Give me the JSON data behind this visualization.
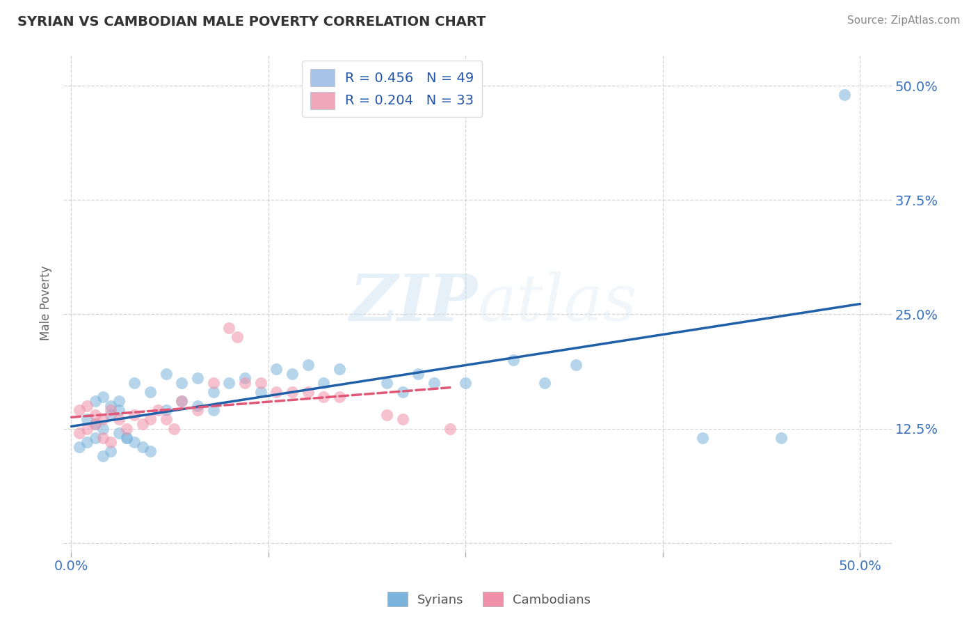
{
  "title": "SYRIAN VS CAMBODIAN MALE POVERTY CORRELATION CHART",
  "source": "Source: ZipAtlas.com",
  "ylabel": "Male Poverty",
  "xlim": [
    -0.005,
    0.52
  ],
  "ylim": [
    -0.01,
    0.535
  ],
  "x_tick_positions": [
    0.0,
    0.125,
    0.25,
    0.375,
    0.5
  ],
  "x_tick_labels": [
    "0.0%",
    "",
    "",
    "",
    "50.0%"
  ],
  "y_tick_positions": [
    0.0,
    0.125,
    0.25,
    0.375,
    0.5
  ],
  "y_tick_labels_right": [
    "",
    "12.5%",
    "25.0%",
    "37.5%",
    "50.0%"
  ],
  "legend_entries": [
    {
      "label": "R = 0.456   N = 49",
      "color": "#a8c4e8"
    },
    {
      "label": "R = 0.204   N = 33",
      "color": "#f0a8b8"
    }
  ],
  "legend_labels_bottom": [
    "Syrians",
    "Cambodians"
  ],
  "watermark": "ZIPatlas",
  "syrian_color": "#7ab4dc",
  "cambodian_color": "#f090a8",
  "syrian_line_color": "#2060a8",
  "cambodian_line_color": "#e05878",
  "grid_color": "#c8c8c8",
  "background_color": "#ffffff",
  "syrians_x": [
    0.005,
    0.01,
    0.015,
    0.02,
    0.025,
    0.03,
    0.035,
    0.04,
    0.045,
    0.05,
    0.01,
    0.015,
    0.02,
    0.025,
    0.03,
    0.035,
    0.015,
    0.02,
    0.025,
    0.03,
    0.04,
    0.05,
    0.06,
    0.07,
    0.08,
    0.09,
    0.06,
    0.07,
    0.08,
    0.09,
    0.1,
    0.11,
    0.12,
    0.13,
    0.14,
    0.15,
    0.16,
    0.17,
    0.2,
    0.21,
    0.22,
    0.23,
    0.25,
    0.28,
    0.3,
    0.32,
    0.4,
    0.45,
    0.49
  ],
  "syrians_y": [
    0.105,
    0.11,
    0.115,
    0.095,
    0.1,
    0.12,
    0.115,
    0.11,
    0.105,
    0.1,
    0.135,
    0.13,
    0.125,
    0.14,
    0.145,
    0.115,
    0.155,
    0.16,
    0.15,
    0.155,
    0.175,
    0.165,
    0.145,
    0.155,
    0.15,
    0.145,
    0.185,
    0.175,
    0.18,
    0.165,
    0.175,
    0.18,
    0.165,
    0.19,
    0.185,
    0.195,
    0.175,
    0.19,
    0.175,
    0.165,
    0.185,
    0.175,
    0.175,
    0.2,
    0.175,
    0.195,
    0.115,
    0.115,
    0.49
  ],
  "cambodians_x": [
    0.005,
    0.01,
    0.015,
    0.02,
    0.025,
    0.005,
    0.01,
    0.015,
    0.02,
    0.025,
    0.03,
    0.035,
    0.04,
    0.045,
    0.05,
    0.055,
    0.06,
    0.065,
    0.07,
    0.08,
    0.09,
    0.1,
    0.105,
    0.11,
    0.12,
    0.13,
    0.14,
    0.15,
    0.16,
    0.17,
    0.2,
    0.21,
    0.24
  ],
  "cambodians_y": [
    0.12,
    0.125,
    0.13,
    0.115,
    0.11,
    0.145,
    0.15,
    0.14,
    0.135,
    0.145,
    0.135,
    0.125,
    0.14,
    0.13,
    0.135,
    0.145,
    0.135,
    0.125,
    0.155,
    0.145,
    0.175,
    0.235,
    0.225,
    0.175,
    0.175,
    0.165,
    0.165,
    0.165,
    0.16,
    0.16,
    0.14,
    0.135,
    0.125
  ],
  "syrian_line_x": [
    0.0,
    0.5
  ],
  "syrian_line_y": [
    0.098,
    0.27
  ],
  "cambodian_line_x": [
    0.0,
    0.245
  ],
  "cambodian_line_y": [
    0.132,
    0.195
  ]
}
